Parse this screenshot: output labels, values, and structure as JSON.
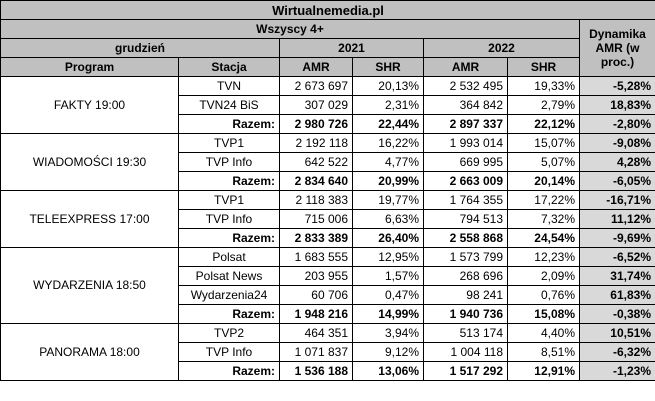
{
  "header": {
    "site": "Wirtualnemedia.pl",
    "audience": "Wszyscy 4+",
    "month": "grudzień",
    "year1": "2021",
    "year2": "2022",
    "dyn_label": "Dynamika AMR (w proc.)",
    "col_program": "Program",
    "col_station": "Stacja",
    "col_amr": "AMR",
    "col_shr": "SHR"
  },
  "programs": [
    {
      "name": "FAKTY 19:00",
      "rows": [
        {
          "station": "TVN",
          "amr1": "2 673 697",
          "shr1": "20,13%",
          "amr2": "2 532 495",
          "shr2": "19,33%",
          "dyn": "-5,28%"
        },
        {
          "station": "TVN24 BiS",
          "amr1": "307 029",
          "shr1": "2,31%",
          "amr2": "364 842",
          "shr2": "2,79%",
          "dyn": "18,83%"
        },
        {
          "station": "Razem:",
          "amr1": "2 980 726",
          "shr1": "22,44%",
          "amr2": "2 897 337",
          "shr2": "22,12%",
          "dyn": "-2,80%"
        }
      ]
    },
    {
      "name": "WIADOMOŚCI 19:30",
      "rows": [
        {
          "station": "TVP1",
          "amr1": "2 192 118",
          "shr1": "16,22%",
          "amr2": "1 993 014",
          "shr2": "15,07%",
          "dyn": "-9,08%"
        },
        {
          "station": "TVP Info",
          "amr1": "642 522",
          "shr1": "4,77%",
          "amr2": "669 995",
          "shr2": "5,07%",
          "dyn": "4,28%"
        },
        {
          "station": "Razem:",
          "amr1": "2 834 640",
          "shr1": "20,99%",
          "amr2": "2 663 009",
          "shr2": "20,14%",
          "dyn": "-6,05%"
        }
      ]
    },
    {
      "name": "TELEEXPRESS 17:00",
      "rows": [
        {
          "station": "TVP1",
          "amr1": "2 118 383",
          "shr1": "19,77%",
          "amr2": "1 764 355",
          "shr2": "17,22%",
          "dyn": "-16,71%"
        },
        {
          "station": "TVP Info",
          "amr1": "715 006",
          "shr1": "6,63%",
          "amr2": "794 513",
          "shr2": "7,32%",
          "dyn": "11,12%"
        },
        {
          "station": "Razem:",
          "amr1": "2 833 389",
          "shr1": "26,40%",
          "amr2": "2 558 868",
          "shr2": "24,54%",
          "dyn": "-9,69%"
        }
      ]
    },
    {
      "name": "WYDARZENIA 18:50",
      "rows": [
        {
          "station": "Polsat",
          "amr1": "1 683 555",
          "shr1": "12,95%",
          "amr2": "1 573 799",
          "shr2": "12,23%",
          "dyn": "-6,52%"
        },
        {
          "station": "Polsat News",
          "amr1": "203 955",
          "shr1": "1,57%",
          "amr2": "268 696",
          "shr2": "2,09%",
          "dyn": "31,74%"
        },
        {
          "station": "Wydarzenia24",
          "amr1": "60 706",
          "shr1": "0,47%",
          "amr2": "98 241",
          "shr2": "0,76%",
          "dyn": "61,83%"
        },
        {
          "station": "Razem:",
          "amr1": "1 948 216",
          "shr1": "14,99%",
          "amr2": "1 940 736",
          "shr2": "15,08%",
          "dyn": "-0,38%"
        }
      ]
    },
    {
      "name": "PANORAMA 18:00",
      "rows": [
        {
          "station": "TVP2",
          "amr1": "464 351",
          "shr1": "3,94%",
          "amr2": "513 174",
          "shr2": "4,40%",
          "dyn": "10,51%"
        },
        {
          "station": "TVP Info",
          "amr1": "1 071 837",
          "shr1": "9,12%",
          "amr2": "1 004 118",
          "shr2": "8,51%",
          "dyn": "-6,32%"
        },
        {
          "station": "Razem:",
          "amr1": "1 536 188",
          "shr1": "13,06%",
          "amr2": "1 517 292",
          "shr2": "12,91%",
          "dyn": "-1,23%"
        }
      ]
    }
  ]
}
